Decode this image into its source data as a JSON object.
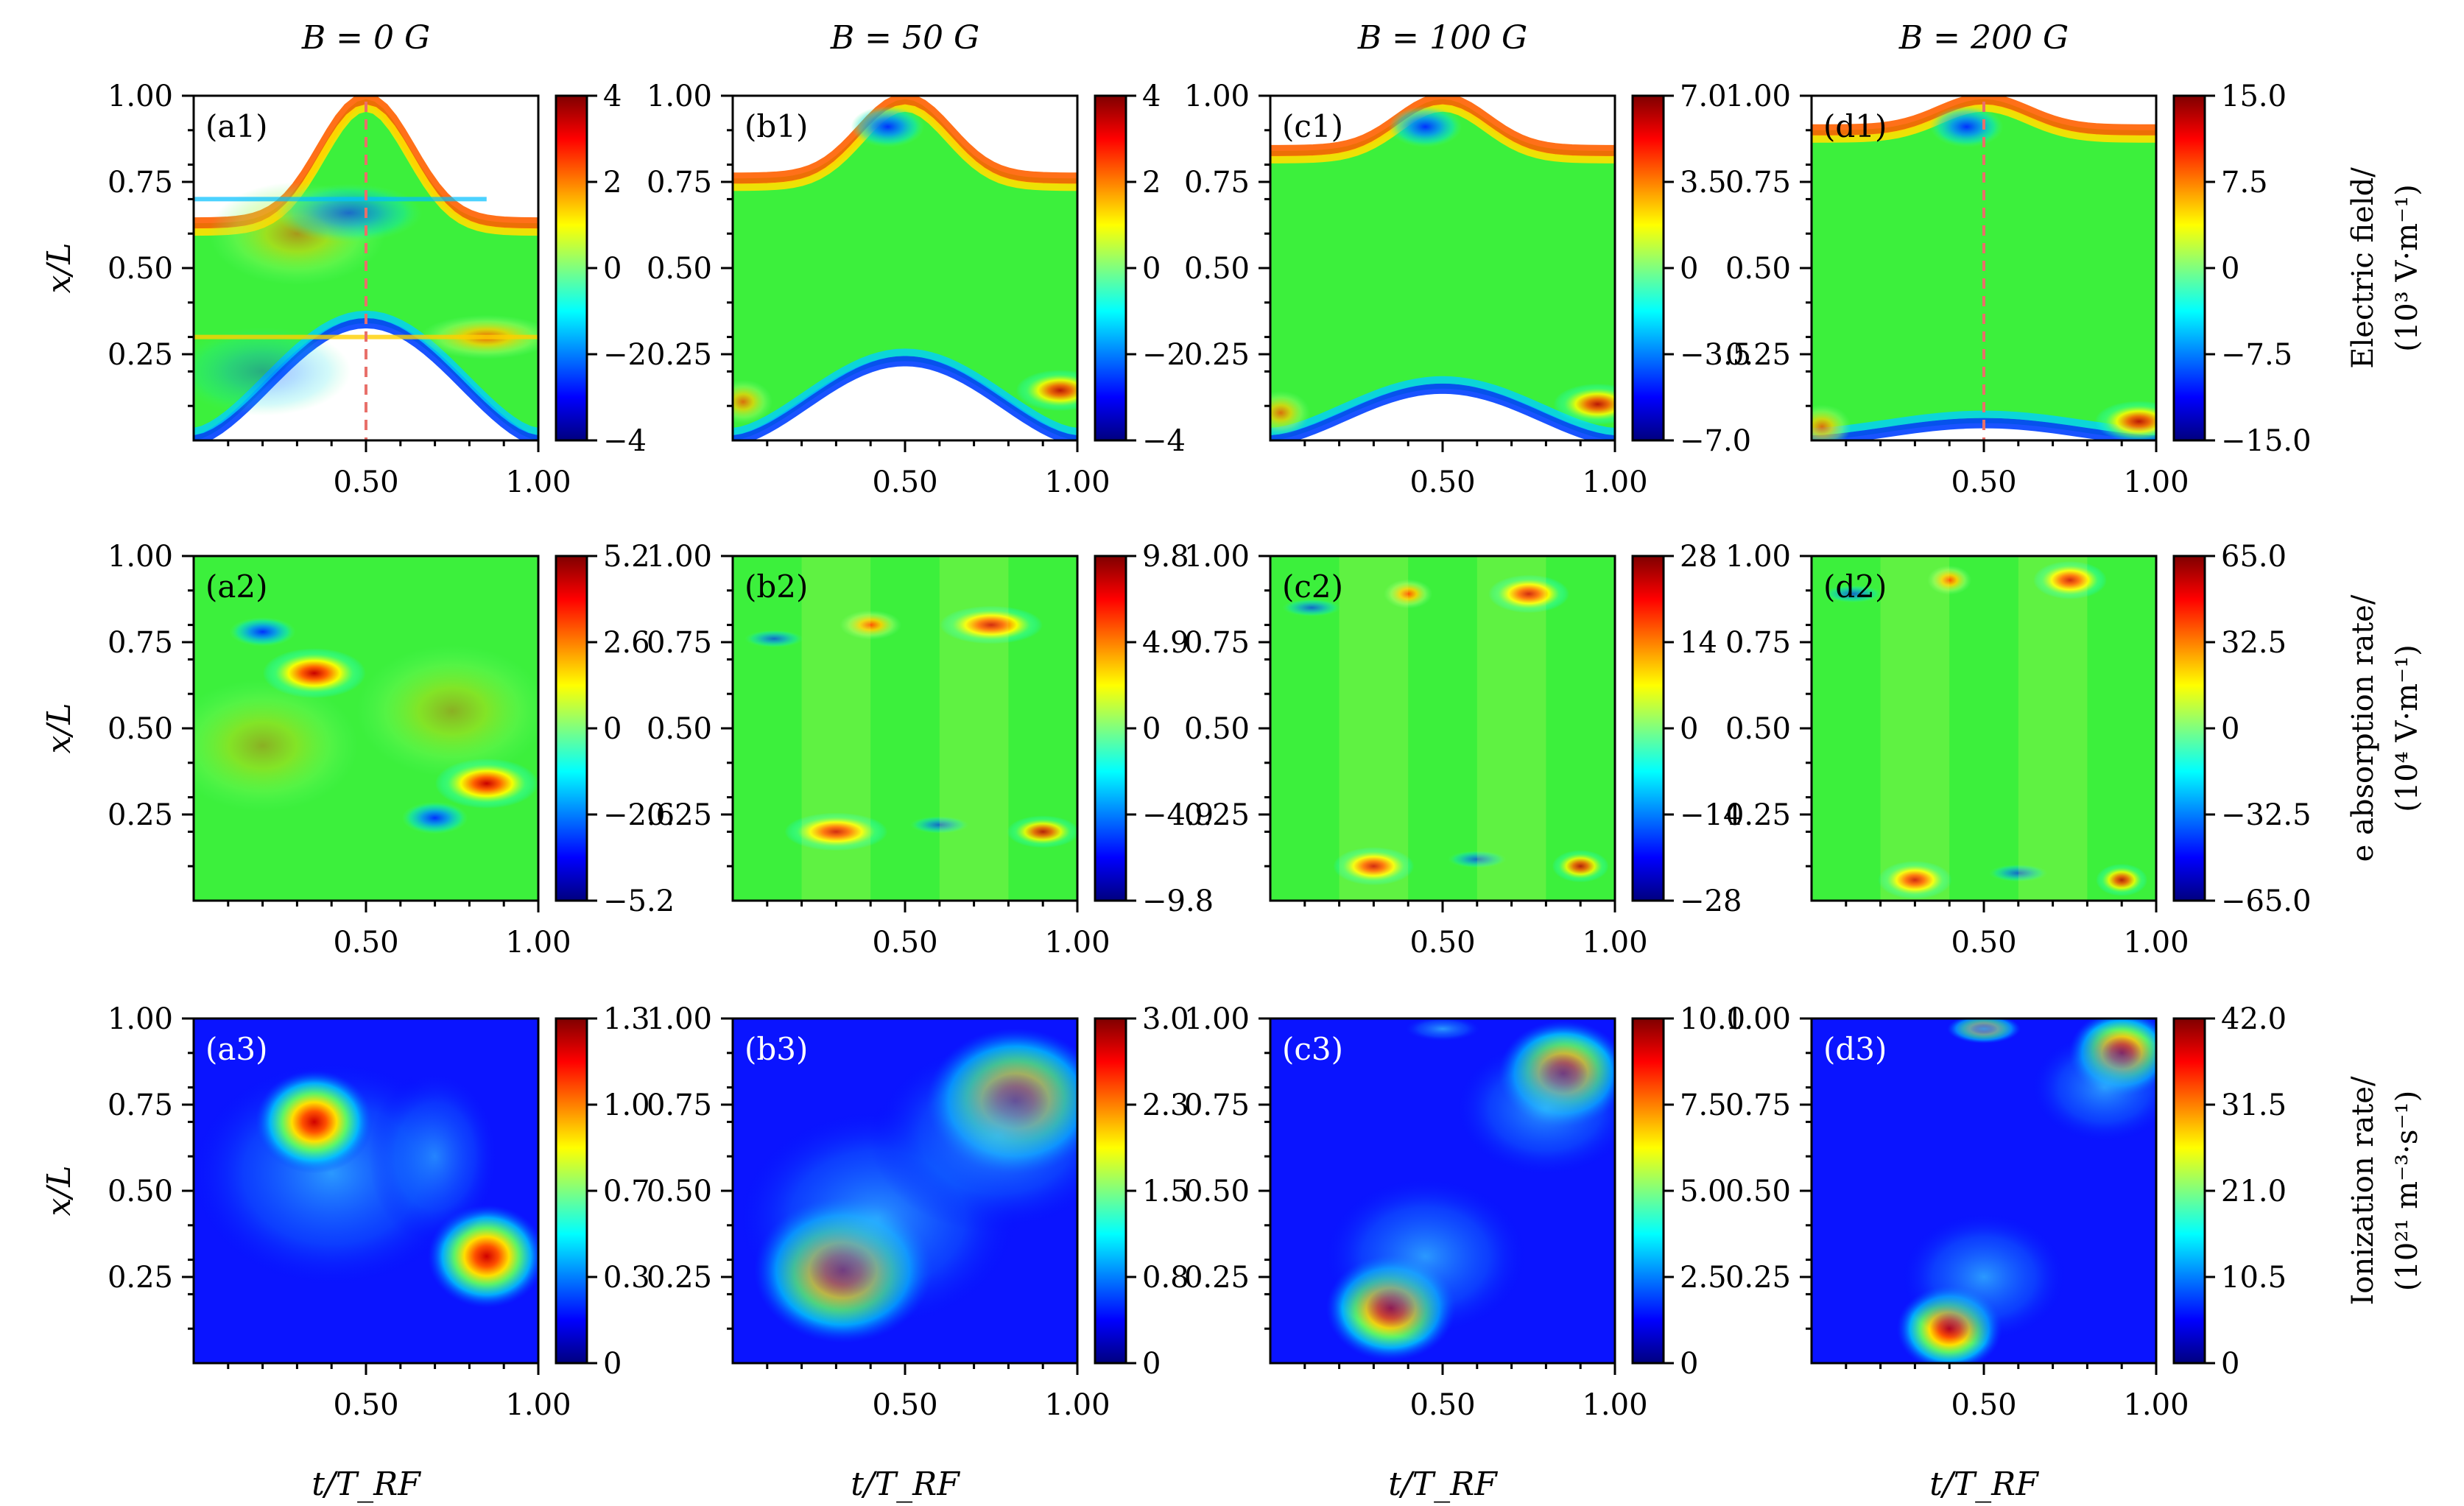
{
  "figure": {
    "column_titles": [
      "B = 0 G",
      "B = 50 G",
      "B = 100 G",
      "B = 200 G"
    ],
    "x_axis_label": "t/T_RF",
    "y_axis_label": "x/L",
    "x_tick_labels": [
      "0.50",
      "1.00"
    ],
    "y_tick_labels": [
      "0.25",
      "0.50",
      "0.75",
      "1.00"
    ],
    "row_labels": [
      {
        "line1": "Electric field/",
        "line2": "(10³ V·m⁻¹)"
      },
      {
        "line1": "e absorption rate/",
        "line2": "(10⁴ V·m⁻¹)"
      },
      {
        "line1": "Ionization rate/",
        "line2": "(10²¹ m⁻³·s⁻¹)"
      }
    ],
    "panel_tags": [
      [
        "(a1)",
        "(b1)",
        "(c1)",
        "(d1)"
      ],
      [
        "(a2)",
        "(b2)",
        "(c2)",
        "(d2)"
      ],
      [
        "(a3)",
        "(b3)",
        "(c3)",
        "(d3)"
      ]
    ],
    "colorbar_ticks": [
      [
        [
          "4",
          "2",
          "0",
          "−2",
          "−4"
        ],
        [
          "4",
          "2",
          "0",
          "−2",
          "−4"
        ],
        [
          "7.0",
          "3.5",
          "0",
          "−3.5",
          "−7.0"
        ],
        [
          "15.0",
          "7.5",
          "0",
          "−7.5",
          "−15.0"
        ]
      ],
      [
        [
          "5.2",
          "2.6",
          "0",
          "−2.6",
          "−5.2"
        ],
        [
          "9.8",
          "4.9",
          "0",
          "−4.9",
          "−9.8"
        ],
        [
          "28",
          "14",
          "0",
          "−14",
          "−28"
        ],
        [
          "65.0",
          "32.5",
          "0",
          "−32.5",
          "−65.0"
        ]
      ],
      [
        [
          "1.3",
          "1.0",
          "0.7",
          "0.3",
          "0"
        ],
        [
          "3.0",
          "2.3",
          "1.5",
          "0.8",
          "0"
        ],
        [
          "10.0",
          "7.5",
          "5.0",
          "2.5",
          "0"
        ],
        [
          "42.0",
          "31.5",
          "21.0",
          "10.5",
          "0"
        ]
      ]
    ]
  },
  "chart_data": {
    "type": "heatmap",
    "x_range": [
      0,
      1
    ],
    "y_range": [
      0,
      1
    ],
    "colormap": "jet",
    "columns_B_gauss": [
      0,
      50,
      100,
      200
    ],
    "rows": [
      {
        "quantity": "Electric field",
        "unit": "10^3 V·m^-1",
        "color_ranges": [
          [
            -4,
            4
          ],
          [
            -4,
            4
          ],
          [
            -7,
            7
          ],
          [
            -15,
            15
          ]
        ]
      },
      {
        "quantity": "e absorption rate",
        "unit": "10^4 V·m^-1",
        "color_ranges": [
          [
            -5.2,
            5.2
          ],
          [
            -9.8,
            9.8
          ],
          [
            -28,
            28
          ],
          [
            -65,
            65
          ]
        ]
      },
      {
        "quantity": "Ionization rate",
        "unit": "10^21 m^-3·s^-1",
        "color_ranges": [
          [
            0,
            1.3
          ],
          [
            0,
            3.0
          ],
          [
            0,
            10.0
          ],
          [
            0,
            42.0
          ]
        ]
      }
    ],
    "reference_lines": [
      {
        "panel": "a1",
        "t": 0.5,
        "color": "#e8706a",
        "style": "dashed"
      },
      {
        "panel": "d1",
        "t": 0.5,
        "color": "#e8706a",
        "style": "dashed"
      }
    ]
  },
  "colors": {
    "jet": [
      "#00007f",
      "#0000ff",
      "#007fff",
      "#00ffff",
      "#7fff7f",
      "#ffff00",
      "#ff7f00",
      "#ff0000",
      "#7f0000"
    ],
    "reference_line": "#e8706a"
  }
}
